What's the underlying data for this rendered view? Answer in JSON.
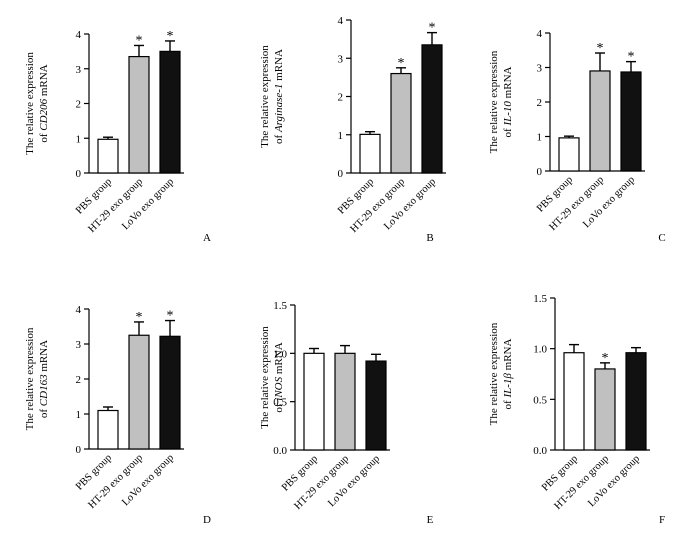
{
  "chart_data": [
    {
      "type": "bar",
      "panel": "A",
      "ylabel_prefix": "The relative expression",
      "ylabel_of": "of",
      "gene": "CD206",
      "ylabel_suffix": "mRNA",
      "ylim": [
        0,
        4
      ],
      "ticks": [
        "0",
        "1",
        "2",
        "3",
        "4"
      ],
      "tick_values": [
        0,
        1,
        2,
        3,
        4
      ],
      "categories": [
        "PBS group",
        "HT-29 exo group",
        "LoVo exo group"
      ],
      "values": [
        0.97,
        3.35,
        3.5
      ],
      "errors": [
        0.06,
        0.32,
        0.3
      ],
      "significance": [
        "",
        "*",
        "*"
      ],
      "colors": [
        "#ffffff",
        "#c0c0c0",
        "#111111"
      ]
    },
    {
      "type": "bar",
      "panel": "B",
      "ylabel_prefix": "The relative expression",
      "ylabel_of": "of",
      "gene": "Arginase-1",
      "ylabel_suffix": "mRNA",
      "ylim": [
        0,
        4
      ],
      "ticks": [
        "0",
        "1",
        "2",
        "3",
        "4"
      ],
      "tick_values": [
        0,
        1,
        2,
        3,
        4
      ],
      "categories": [
        "PBS group",
        "HT-29 exo group",
        "LoVo exo group"
      ],
      "values": [
        1.01,
        2.6,
        3.35
      ],
      "errors": [
        0.07,
        0.15,
        0.32
      ],
      "significance": [
        "",
        "*",
        "*"
      ],
      "colors": [
        "#ffffff",
        "#c0c0c0",
        "#111111"
      ]
    },
    {
      "type": "bar",
      "panel": "C",
      "ylabel_prefix": "The relative expression",
      "ylabel_of": "of",
      "gene": "IL-10",
      "ylabel_suffix": "mRNA",
      "ylim": [
        0,
        4
      ],
      "ticks": [
        "0",
        "1",
        "2",
        "3",
        "4"
      ],
      "tick_values": [
        0,
        1,
        2,
        3,
        4
      ],
      "categories": [
        "PBS group",
        "HT-29 exo group",
        "LoVo exo group"
      ],
      "values": [
        0.96,
        2.9,
        2.87
      ],
      "errors": [
        0.05,
        0.52,
        0.3
      ],
      "significance": [
        "",
        "*",
        "*"
      ],
      "colors": [
        "#ffffff",
        "#c0c0c0",
        "#111111"
      ]
    },
    {
      "type": "bar",
      "panel": "D",
      "ylabel_prefix": "The relative expression",
      "ylabel_of": "of",
      "gene": "CD163",
      "ylabel_suffix": "mRNA",
      "ylim": [
        0,
        4
      ],
      "ticks": [
        "0",
        "1",
        "2",
        "3",
        "4"
      ],
      "tick_values": [
        0,
        1,
        2,
        3,
        4
      ],
      "categories": [
        "PBS group",
        "HT-29 exo group",
        "LoVo exo group"
      ],
      "values": [
        1.1,
        3.25,
        3.22
      ],
      "errors": [
        0.1,
        0.38,
        0.45
      ],
      "significance": [
        "",
        "*",
        "*"
      ],
      "colors": [
        "#ffffff",
        "#c0c0c0",
        "#111111"
      ]
    },
    {
      "type": "bar",
      "panel": "E",
      "ylabel_prefix": "The relative expression",
      "ylabel_of": "of",
      "gene": "iNOS",
      "ylabel_suffix": "mRNA",
      "ylim": [
        0,
        1.5
      ],
      "ticks": [
        "0.0",
        "0.5",
        "1.0",
        "1.5"
      ],
      "tick_values": [
        0,
        0.5,
        1.0,
        1.5
      ],
      "categories": [
        "PBS group",
        "HT-29 exo group",
        "LoVo exo group"
      ],
      "values": [
        1.0,
        1.0,
        0.92
      ],
      "errors": [
        0.05,
        0.08,
        0.07
      ],
      "significance": [
        "",
        "",
        ""
      ],
      "colors": [
        "#ffffff",
        "#c0c0c0",
        "#111111"
      ]
    },
    {
      "type": "bar",
      "panel": "F",
      "ylabel_prefix": "The relative expression",
      "ylabel_of": "of",
      "gene": "IL-1β",
      "ylabel_suffix": "mRNA",
      "ylim": [
        0,
        1.5
      ],
      "ticks": [
        "0.0",
        "0.5",
        "1.0",
        "1.5"
      ],
      "tick_values": [
        0,
        0.5,
        1.0,
        1.5
      ],
      "categories": [
        "PBS group",
        "HT-29 exo group",
        "LoVo exo group"
      ],
      "values": [
        0.96,
        0.8,
        0.96
      ],
      "errors": [
        0.08,
        0.06,
        0.05
      ],
      "significance": [
        "",
        "*",
        ""
      ],
      "colors": [
        "#ffffff",
        "#c0c0c0",
        "#111111"
      ]
    }
  ]
}
